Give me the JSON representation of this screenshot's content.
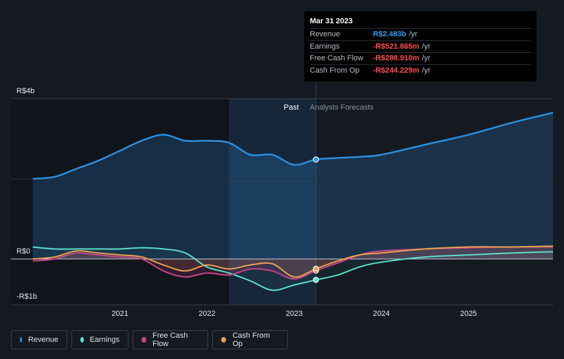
{
  "tooltip": {
    "date": "Mar 31 2023",
    "rows": [
      {
        "label": "Revenue",
        "value": "R$2.483b",
        "unit": "/yr",
        "color": "#2f9ef0"
      },
      {
        "label": "Earnings",
        "value": "-R$521.865m",
        "unit": "/yr",
        "color": "#ff4d4d"
      },
      {
        "label": "Free Cash Flow",
        "value": "-R$288.910m",
        "unit": "/yr",
        "color": "#ff4d4d"
      },
      {
        "label": "Cash From Op",
        "value": "-R$244.229m",
        "unit": "/yr",
        "color": "#ff4d4d"
      }
    ]
  },
  "segments": {
    "past": "Past",
    "forecast": "Analysts Forecasts"
  },
  "legend": [
    {
      "label": "Revenue",
      "color": "#2c8fe0"
    },
    {
      "label": "Earnings",
      "color": "#5ce0cc"
    },
    {
      "label": "Free Cash Flow",
      "color": "#c9458a"
    },
    {
      "label": "Cash From Op",
      "color": "#e8a24f"
    }
  ],
  "chart_data": {
    "type": "line",
    "title": "",
    "xlabel": "",
    "ylabel": "",
    "x_ticks": [
      "2021",
      "2022",
      "2023",
      "2024",
      "2025"
    ],
    "x_tick_values": [
      2021.0,
      2022.0,
      2023.0,
      2024.0,
      2025.0
    ],
    "y_ticks": [
      "R$4b",
      "R$0",
      "-R$1b"
    ],
    "y_tick_values": [
      4,
      0,
      -1
    ],
    "xlim": [
      2019.75,
      2025.97
    ],
    "ylim": [
      -1.2,
      4.0
    ],
    "past_end": 2023.25,
    "highlight_start": 2022.25,
    "highlight_point": {
      "x": 2023.25,
      "revenue": 2.483,
      "earnings": -0.522,
      "fcf": -0.289,
      "cfo": -0.244
    },
    "series": [
      {
        "name": "Revenue",
        "color": "#2c8fe0",
        "x": [
          2020.0,
          2020.25,
          2020.5,
          2020.75,
          2021.0,
          2021.25,
          2021.5,
          2021.75,
          2022.0,
          2022.25,
          2022.5,
          2022.75,
          2023.0,
          2023.25,
          2023.5,
          2023.75,
          2024.0,
          2024.5,
          2025.0,
          2025.5,
          2025.97
        ],
        "values": [
          2.0,
          2.05,
          2.25,
          2.45,
          2.7,
          2.95,
          3.1,
          2.95,
          2.95,
          2.9,
          2.6,
          2.6,
          2.35,
          2.483,
          2.52,
          2.55,
          2.6,
          2.85,
          3.1,
          3.4,
          3.65
        ]
      },
      {
        "name": "Earnings",
        "color": "#5ce0cc",
        "x": [
          2020.0,
          2020.25,
          2020.5,
          2020.75,
          2021.0,
          2021.25,
          2021.5,
          2021.75,
          2022.0,
          2022.25,
          2022.5,
          2022.75,
          2023.0,
          2023.25,
          2023.5,
          2023.75,
          2024.0,
          2024.5,
          2025.0,
          2025.5,
          2025.97
        ],
        "values": [
          0.3,
          0.25,
          0.25,
          0.25,
          0.25,
          0.28,
          0.25,
          0.15,
          -0.2,
          -0.35,
          -0.55,
          -0.78,
          -0.65,
          -0.522,
          -0.4,
          -0.2,
          -0.08,
          0.05,
          0.1,
          0.15,
          0.18
        ]
      },
      {
        "name": "Free Cash Flow",
        "color": "#c9458a",
        "x": [
          2020.0,
          2020.25,
          2020.5,
          2020.75,
          2021.0,
          2021.25,
          2021.5,
          2021.75,
          2022.0,
          2022.25,
          2022.5,
          2022.75,
          2023.0,
          2023.25,
          2023.5,
          2023.75,
          2024.0,
          2024.5,
          2025.0,
          2025.5,
          2025.97
        ],
        "values": [
          -0.05,
          0.0,
          0.15,
          0.1,
          0.05,
          0.0,
          -0.3,
          -0.45,
          -0.35,
          -0.4,
          -0.25,
          -0.3,
          -0.5,
          -0.289,
          -0.1,
          0.1,
          0.2,
          0.25,
          0.28,
          0.3,
          0.3
        ]
      },
      {
        "name": "Cash From Op",
        "color": "#e8a24f",
        "x": [
          2020.0,
          2020.25,
          2020.5,
          2020.75,
          2021.0,
          2021.25,
          2021.5,
          2021.75,
          2022.0,
          2022.25,
          2022.5,
          2022.75,
          2023.0,
          2023.25,
          2023.5,
          2023.75,
          2024.0,
          2024.5,
          2025.0,
          2025.5,
          2025.97
        ],
        "values": [
          0.0,
          0.05,
          0.2,
          0.15,
          0.1,
          0.05,
          -0.15,
          -0.3,
          -0.15,
          -0.25,
          -0.15,
          -0.12,
          -0.45,
          -0.244,
          -0.05,
          0.1,
          0.15,
          0.25,
          0.3,
          0.3,
          0.32
        ]
      }
    ]
  }
}
